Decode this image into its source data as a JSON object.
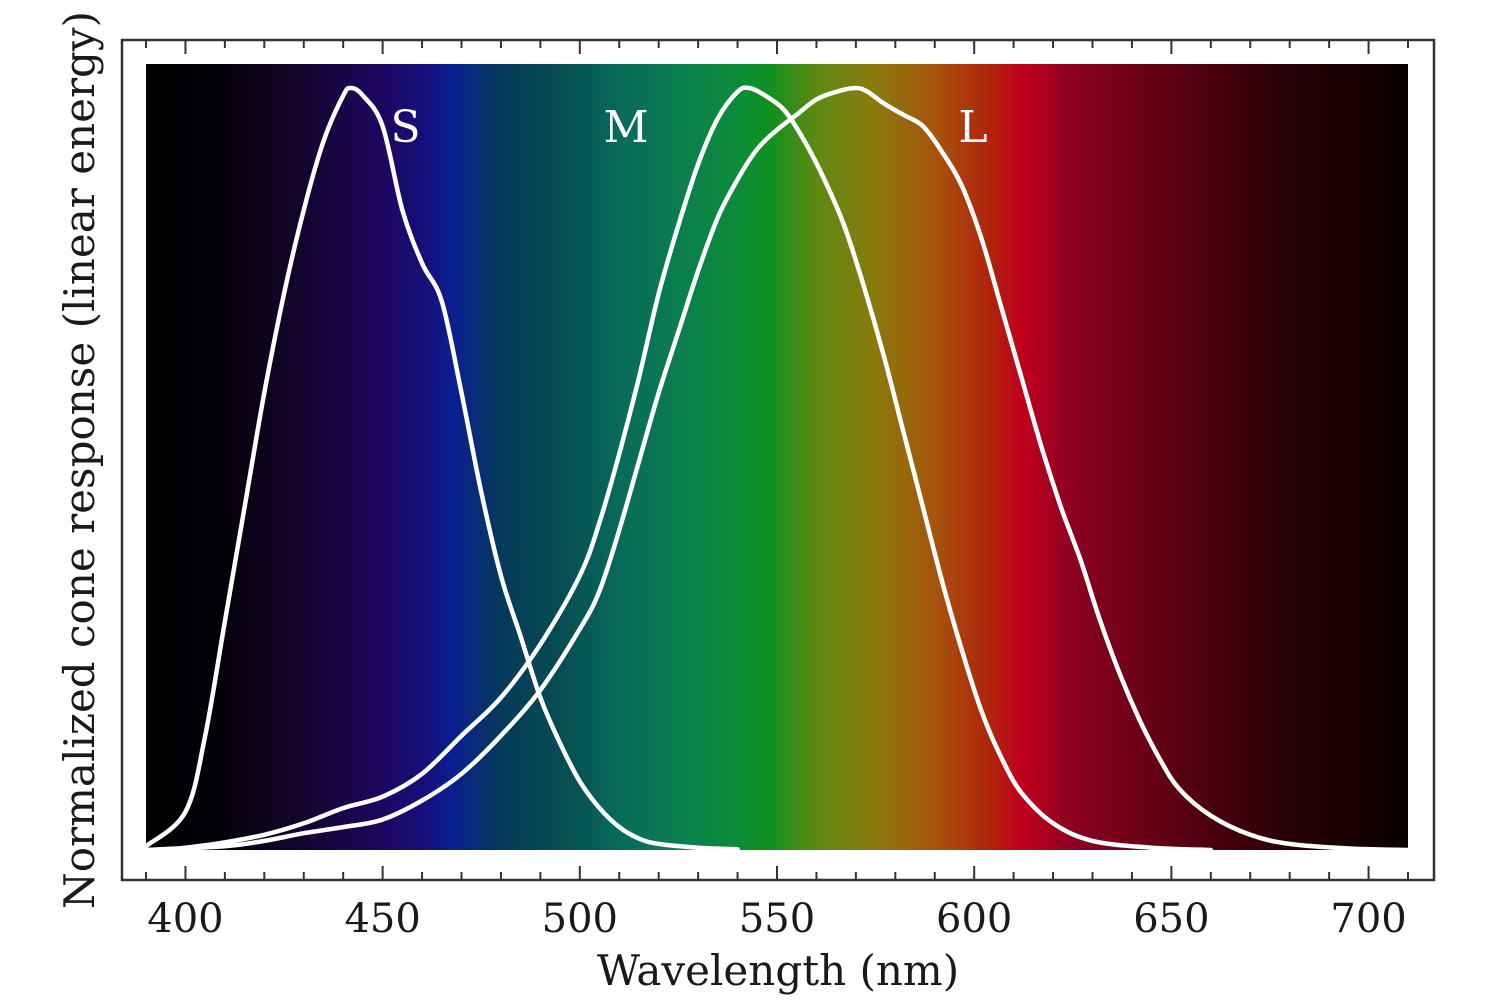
{
  "chart_data": {
    "type": "line",
    "title": "",
    "xlabel": "Wavelength (nm)",
    "ylabel": "Normalized cone response (linear energy)",
    "xlim": [
      390,
      710
    ],
    "ylim": [
      0,
      1
    ],
    "x_ticks": [
      400,
      450,
      500,
      550,
      600,
      650,
      700
    ],
    "x_tick_labels": [
      "400",
      "450",
      "500",
      "550",
      "600",
      "650",
      "700"
    ],
    "y_ticks_labeled": false,
    "grid": false,
    "background": "visible spectrum gradient",
    "spectrum_colors": [
      {
        "nm": 390,
        "color": "#000000"
      },
      {
        "nm": 410,
        "color": "#05010a"
      },
      {
        "nm": 430,
        "color": "#14042e"
      },
      {
        "nm": 450,
        "color": "#1c0660"
      },
      {
        "nm": 460,
        "color": "#160e7a"
      },
      {
        "nm": 468,
        "color": "#0a1f90"
      },
      {
        "nm": 480,
        "color": "#053a5a"
      },
      {
        "nm": 495,
        "color": "#064c52"
      },
      {
        "nm": 510,
        "color": "#076a5a"
      },
      {
        "nm": 525,
        "color": "#0a7e4e"
      },
      {
        "nm": 540,
        "color": "#0c8c38"
      },
      {
        "nm": 548,
        "color": "#0f9020"
      },
      {
        "nm": 560,
        "color": "#5d8a12"
      },
      {
        "nm": 575,
        "color": "#8a7a0c"
      },
      {
        "nm": 590,
        "color": "#a6540c"
      },
      {
        "nm": 605,
        "color": "#b0200c"
      },
      {
        "nm": 612,
        "color": "#c0001c"
      },
      {
        "nm": 625,
        "color": "#8c0020"
      },
      {
        "nm": 650,
        "color": "#5c0012"
      },
      {
        "nm": 680,
        "color": "#260006"
      },
      {
        "nm": 710,
        "color": "#0a0000"
      }
    ],
    "curve_color": "#ffffff",
    "series": [
      {
        "name": "S",
        "label_at": {
          "x": 452,
          "y": 0.95
        },
        "points": [
          [
            390,
            0.005
          ],
          [
            400,
            0.05
          ],
          [
            405,
            0.15
          ],
          [
            410,
            0.3
          ],
          [
            415,
            0.45
          ],
          [
            420,
            0.6
          ],
          [
            425,
            0.73
          ],
          [
            430,
            0.84
          ],
          [
            435,
            0.93
          ],
          [
            440,
            0.99
          ],
          [
            442,
            1.0
          ],
          [
            445,
            0.99
          ],
          [
            450,
            0.95
          ],
          [
            455,
            0.84
          ],
          [
            460,
            0.77
          ],
          [
            465,
            0.72
          ],
          [
            470,
            0.6
          ],
          [
            475,
            0.47
          ],
          [
            480,
            0.36
          ],
          [
            485,
            0.28
          ],
          [
            490,
            0.2
          ],
          [
            495,
            0.14
          ],
          [
            500,
            0.09
          ],
          [
            505,
            0.055
          ],
          [
            510,
            0.03
          ],
          [
            515,
            0.015
          ],
          [
            520,
            0.008
          ],
          [
            530,
            0.003
          ],
          [
            540,
            0.001
          ]
        ]
      },
      {
        "name": "M",
        "label_at": {
          "x": 506,
          "y": 0.95
        },
        "points": [
          [
            390,
            0.0
          ],
          [
            400,
            0.003
          ],
          [
            410,
            0.01
          ],
          [
            420,
            0.02
          ],
          [
            430,
            0.035
          ],
          [
            440,
            0.055
          ],
          [
            450,
            0.07
          ],
          [
            460,
            0.1
          ],
          [
            470,
            0.15
          ],
          [
            480,
            0.2
          ],
          [
            490,
            0.27
          ],
          [
            500,
            0.36
          ],
          [
            505,
            0.43
          ],
          [
            510,
            0.52
          ],
          [
            515,
            0.62
          ],
          [
            520,
            0.73
          ],
          [
            525,
            0.82
          ],
          [
            530,
            0.9
          ],
          [
            535,
            0.96
          ],
          [
            540,
            0.995
          ],
          [
            543,
            1.0
          ],
          [
            547,
            0.99
          ],
          [
            552,
            0.97
          ],
          [
            557,
            0.93
          ],
          [
            562,
            0.88
          ],
          [
            567,
            0.82
          ],
          [
            572,
            0.74
          ],
          [
            577,
            0.65
          ],
          [
            582,
            0.55
          ],
          [
            587,
            0.45
          ],
          [
            592,
            0.35
          ],
          [
            597,
            0.26
          ],
          [
            602,
            0.18
          ],
          [
            607,
            0.12
          ],
          [
            612,
            0.075
          ],
          [
            620,
            0.035
          ],
          [
            630,
            0.012
          ],
          [
            645,
            0.003
          ],
          [
            660,
            0.0
          ]
        ]
      },
      {
        "name": "L",
        "label_at": {
          "x": 596,
          "y": 0.95
        },
        "points": [
          [
            390,
            0.0
          ],
          [
            410,
            0.005
          ],
          [
            420,
            0.012
          ],
          [
            430,
            0.022
          ],
          [
            440,
            0.03
          ],
          [
            450,
            0.04
          ],
          [
            460,
            0.065
          ],
          [
            470,
            0.1
          ],
          [
            480,
            0.15
          ],
          [
            490,
            0.21
          ],
          [
            500,
            0.29
          ],
          [
            505,
            0.34
          ],
          [
            510,
            0.42
          ],
          [
            515,
            0.51
          ],
          [
            520,
            0.6
          ],
          [
            525,
            0.68
          ],
          [
            530,
            0.76
          ],
          [
            535,
            0.83
          ],
          [
            540,
            0.88
          ],
          [
            545,
            0.92
          ],
          [
            550,
            0.945
          ],
          [
            555,
            0.965
          ],
          [
            560,
            0.985
          ],
          [
            565,
            0.995
          ],
          [
            570,
            1.0
          ],
          [
            573,
            0.995
          ],
          [
            577,
            0.98
          ],
          [
            582,
            0.965
          ],
          [
            587,
            0.95
          ],
          [
            592,
            0.915
          ],
          [
            597,
            0.87
          ],
          [
            602,
            0.8
          ],
          [
            607,
            0.71
          ],
          [
            612,
            0.62
          ],
          [
            617,
            0.53
          ],
          [
            622,
            0.45
          ],
          [
            627,
            0.38
          ],
          [
            632,
            0.3
          ],
          [
            637,
            0.23
          ],
          [
            642,
            0.17
          ],
          [
            647,
            0.12
          ],
          [
            652,
            0.08
          ],
          [
            660,
            0.045
          ],
          [
            670,
            0.02
          ],
          [
            680,
            0.008
          ],
          [
            695,
            0.002
          ],
          [
            710,
            0.0
          ]
        ]
      }
    ]
  }
}
